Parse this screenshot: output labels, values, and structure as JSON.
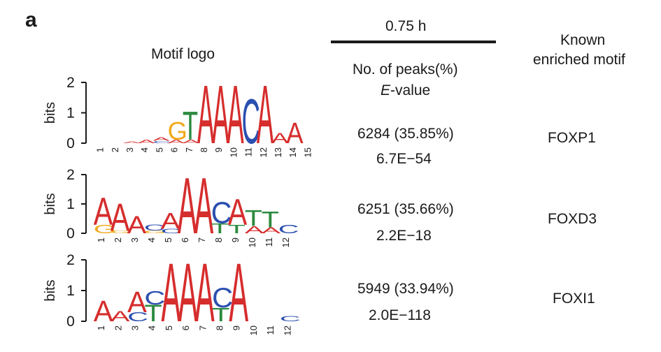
{
  "panel_label": "a",
  "logo_title": "Motif logo",
  "time_label": "0.75 h",
  "peaks_header": "No. of peaks(%)",
  "evalue_header_prefix": "E",
  "evalue_header_suffix": "-value",
  "known_header_line1": "Known",
  "known_header_line2": "enriched motif",
  "yaxis_label": "bits",
  "yticks": [
    "0",
    "1",
    "2"
  ],
  "colors": {
    "A": "#d62d2d",
    "C": "#2b4fb0",
    "G": "#f2a91c",
    "T": "#2b8a3e",
    "axis": "#1a1a1a"
  },
  "rows": [
    {
      "peaks": "6284 (35.85%)",
      "evalue": "6.7E−54",
      "motif": "FOXP1",
      "positions": [
        "1",
        "2",
        "3",
        "4",
        "5",
        "6",
        "7",
        "8",
        "9",
        "10",
        "11",
        "12",
        "13",
        "14",
        "15"
      ],
      "logo": [
        [],
        [],
        [
          [
            "A",
            0.06
          ]
        ],
        [
          [
            "A",
            0.12
          ]
        ],
        [
          [
            "C",
            0.08
          ],
          [
            "A",
            0.12
          ]
        ],
        [
          [
            "A",
            0.12
          ],
          [
            "G",
            0.6
          ]
        ],
        [
          [
            "A",
            0.12
          ],
          [
            "T",
            0.95
          ]
        ],
        [
          [
            "A",
            1.95
          ]
        ],
        [
          [
            "A",
            1.95
          ]
        ],
        [
          [
            "A",
            1.95
          ]
        ],
        [
          [
            "C",
            1.5
          ]
        ],
        [
          [
            "A",
            1.95
          ]
        ],
        [
          [
            "A",
            0.35
          ]
        ],
        [
          [
            "A",
            0.7
          ]
        ],
        []
      ]
    },
    {
      "peaks": "6251 (35.66%)",
      "evalue": "2.2E−18",
      "motif": "FOXD3",
      "positions": [
        "1",
        "2",
        "3",
        "4",
        "5",
        "6",
        "7",
        "8",
        "9",
        "10",
        "11",
        "12"
      ],
      "logo": [
        [
          [
            "G",
            0.3
          ],
          [
            "A",
            0.95
          ]
        ],
        [
          [
            "G",
            0.1
          ],
          [
            "A",
            0.95
          ]
        ],
        [
          [
            "A",
            0.6
          ]
        ],
        [
          [
            "G",
            0.1
          ],
          [
            "C",
            0.2
          ]
        ],
        [
          [
            "C",
            0.15
          ],
          [
            "A",
            0.55
          ]
        ],
        [
          [
            "A",
            1.95
          ]
        ],
        [
          [
            "A",
            1.95
          ]
        ],
        [
          [
            "T",
            0.35
          ],
          [
            "C",
            0.75
          ]
        ],
        [
          [
            "T",
            0.3
          ],
          [
            "A",
            0.9
          ]
        ],
        [
          [
            "A",
            0.25
          ],
          [
            "T",
            0.55
          ]
        ],
        [
          [
            "A",
            0.2
          ],
          [
            "T",
            0.55
          ]
        ],
        [
          [
            "C",
            0.3
          ]
        ]
      ]
    },
    {
      "peaks": "5949 (33.94%)",
      "evalue": "2.0E−118",
      "motif": "FOXI1",
      "positions": [
        "1",
        "2",
        "3",
        "4",
        "5",
        "6",
        "7",
        "8",
        "9",
        "10",
        "11",
        "12"
      ],
      "logo": [
        [
          [
            "A",
            0.7
          ]
        ],
        [
          [
            "A",
            0.35
          ]
        ],
        [
          [
            "C",
            0.3
          ],
          [
            "A",
            0.7
          ]
        ],
        [
          [
            "T",
            0.55
          ],
          [
            "C",
            0.45
          ]
        ],
        [
          [
            "A",
            1.95
          ]
        ],
        [
          [
            "A",
            1.95
          ]
        ],
        [
          [
            "A",
            1.95
          ]
        ],
        [
          [
            "T",
            0.45
          ],
          [
            "C",
            0.65
          ]
        ],
        [
          [
            "A",
            1.95
          ]
        ],
        [],
        [],
        [
          [
            "C",
            0.18
          ]
        ]
      ]
    }
  ]
}
